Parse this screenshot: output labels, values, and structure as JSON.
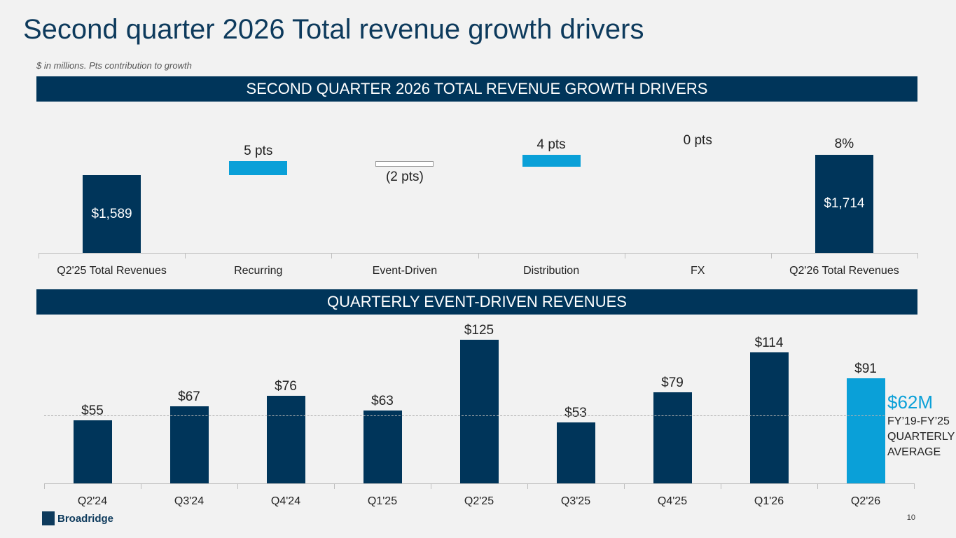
{
  "title": "Second quarter 2026 Total revenue growth drivers",
  "subtitle": "$ in millions. Pts contribution to growth",
  "page_number": "10",
  "logo": "Broadridge",
  "chart_data": [
    {
      "type": "waterfall",
      "title": "SECOND QUARTER 2026 TOTAL REVENUE GROWTH DRIVERS",
      "categories": [
        "Q2'25 Total Revenues",
        "Recurring",
        "Event-Driven",
        "Distribution",
        "FX",
        "Q2'26 Total Revenues"
      ],
      "values": [
        1589,
        5,
        -2,
        4,
        0,
        1714
      ],
      "labels": [
        "$1,589",
        "5 pts",
        "(2 pts)",
        "4 pts",
        "0 pts",
        "$1,714"
      ],
      "top_label": "8%",
      "colors": {
        "total": "#00355a",
        "positive": "#0aa0d8",
        "negative": "#ffffff"
      }
    },
    {
      "type": "bar",
      "title": "QUARTERLY EVENT-DRIVEN REVENUES",
      "categories": [
        "Q2'24",
        "Q3'24",
        "Q4'24",
        "Q1'25",
        "Q2'25",
        "Q3'25",
        "Q4'25",
        "Q1'26",
        "Q2'26"
      ],
      "values": [
        55,
        67,
        76,
        63,
        125,
        53,
        79,
        114,
        91
      ],
      "labels": [
        "$55",
        "$67",
        "$76",
        "$63",
        "$125",
        "$53",
        "$79",
        "$114",
        "$91"
      ],
      "colors": {
        "default": "#00355a",
        "highlight": "#0aa0d8"
      },
      "reference_line": {
        "value": 62,
        "label": "$62M",
        "caption": [
          "FY’19-FY’25",
          "QUARTERLY",
          "AVERAGE"
        ]
      }
    }
  ]
}
